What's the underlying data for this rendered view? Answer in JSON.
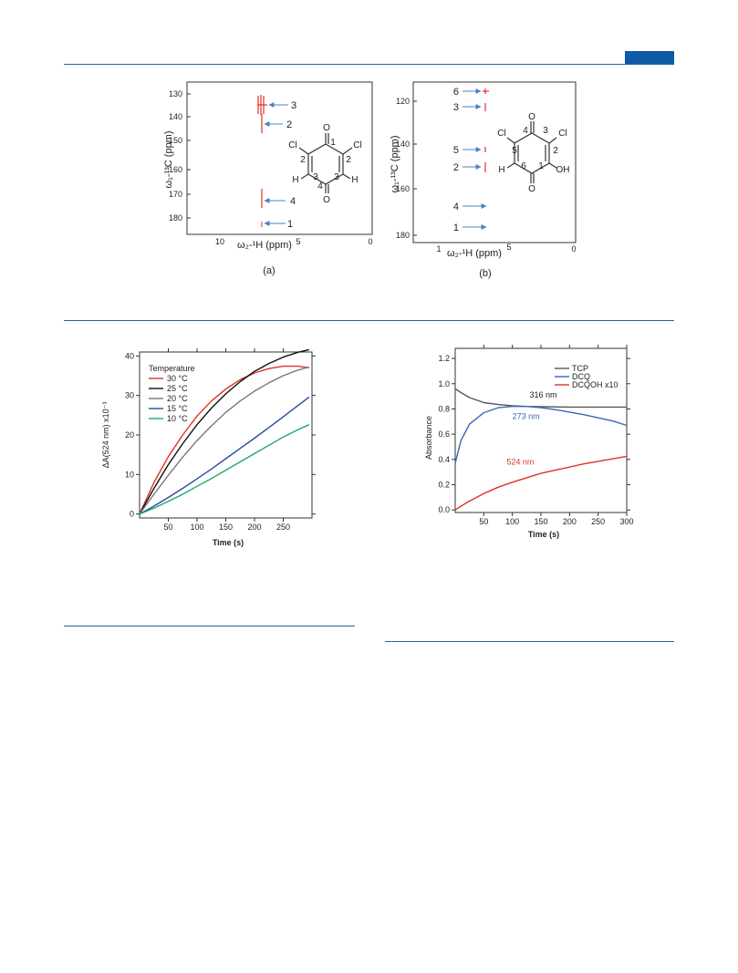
{
  "figure_top": {
    "nmr_a": {
      "y_label": "ω₁-¹³C (ppm)",
      "x_label": "ω₂-¹H (ppm)",
      "y_ticks": [
        "130",
        "140",
        "150",
        "160",
        "170",
        "180"
      ],
      "x_ticks": [
        "10",
        "5",
        "0"
      ],
      "annotations": [
        "3",
        "2",
        "4",
        "1"
      ],
      "structure_atoms": [
        "O",
        "1",
        "Cl",
        "2",
        "2",
        "Cl",
        "H",
        "3",
        "3",
        "H",
        "4",
        "O"
      ],
      "caption": "(a)"
    },
    "nmr_b": {
      "y_label": "ω₁-¹³C (ppm)",
      "x_label": "ω₂-¹H (ppm)",
      "y_ticks": [
        "120",
        "140",
        "160",
        "180"
      ],
      "x_ticks": [
        "1",
        "5",
        "0"
      ],
      "annotations": [
        "6",
        "3",
        "5",
        "2",
        "4",
        "1"
      ],
      "structure_atoms": [
        "O",
        "4",
        "3",
        "Cl",
        "Cl",
        "5",
        "2",
        "H",
        "6",
        "1",
        "OH",
        "O"
      ],
      "caption": "(b)"
    }
  },
  "chart_data": [
    {
      "type": "line",
      "xlabel": "Time (s)",
      "ylabel": "ΔA(524 nm) x10⁻³",
      "xlim": [
        0,
        300
      ],
      "ylim": [
        -1,
        41
      ],
      "x_ticks": [
        50,
        100,
        150,
        200,
        250
      ],
      "y_ticks": [
        0,
        10,
        20,
        30,
        40
      ],
      "legend_title": "Temperature",
      "legend_position": "top-left",
      "x": [
        0,
        25,
        50,
        75,
        100,
        125,
        150,
        175,
        200,
        225,
        250,
        275,
        295
      ],
      "series": [
        {
          "name": "30 °C",
          "color": "#e0302a",
          "values": [
            0,
            8,
            14.5,
            20,
            24.8,
            28.6,
            31.6,
            34,
            35.7,
            36.8,
            37.4,
            37.4,
            37.0
          ]
        },
        {
          "name": "25 °C",
          "color": "#111111",
          "values": [
            0,
            6.5,
            12.5,
            17.8,
            22.6,
            26.8,
            30.4,
            33.5,
            36.1,
            38.1,
            39.7,
            40.9,
            41.6
          ]
        },
        {
          "name": "20 °C",
          "color": "#777777",
          "values": [
            0,
            5,
            9.8,
            14.4,
            18.6,
            22.3,
            25.7,
            28.6,
            31.1,
            33.2,
            35,
            36.4,
            37.2
          ]
        },
        {
          "name": "15 °C",
          "color": "#2b4a9e",
          "values": [
            0,
            2,
            4.2,
            6.5,
            8.9,
            11.4,
            14,
            16.6,
            19.2,
            21.9,
            24.6,
            27.4,
            29.6
          ]
        },
        {
          "name": "10 °C",
          "color": "#1fa86b",
          "values": [
            0,
            1.5,
            3.2,
            5,
            7,
            9,
            11.1,
            13.2,
            15.3,
            17.4,
            19.5,
            21.3,
            22.6
          ]
        }
      ]
    },
    {
      "type": "line",
      "xlabel": "Time (s)",
      "ylabel": "Absorbance",
      "xlim": [
        0,
        300
      ],
      "ylim": [
        -0.02,
        1.28
      ],
      "x_ticks": [
        50,
        100,
        150,
        200,
        250,
        300
      ],
      "y_ticks": [
        "0.0",
        "0.2",
        "0.4",
        "0.6",
        "0.8",
        "1.0",
        "1.2"
      ],
      "legend_position": "top-right",
      "x": [
        0,
        10,
        25,
        50,
        75,
        100,
        125,
        150,
        175,
        200,
        225,
        250,
        275,
        300
      ],
      "series": [
        {
          "name": "TCP",
          "color": "#555555",
          "label": "316 nm",
          "values": [
            0.96,
            0.93,
            0.89,
            0.85,
            0.835,
            0.825,
            0.82,
            0.818,
            0.816,
            0.815,
            0.815,
            0.815,
            0.815,
            0.815
          ]
        },
        {
          "name": "DCQ",
          "color": "#3a66b5",
          "label": "273 nm",
          "values": [
            0.37,
            0.55,
            0.68,
            0.77,
            0.81,
            0.82,
            0.82,
            0.81,
            0.795,
            0.775,
            0.755,
            0.73,
            0.705,
            0.67
          ]
        },
        {
          "name": "DCQOH x10",
          "color": "#e0302a",
          "label": "524 nm",
          "values": [
            0,
            0.03,
            0.07,
            0.13,
            0.18,
            0.22,
            0.255,
            0.29,
            0.315,
            0.34,
            0.365,
            0.385,
            0.405,
            0.425
          ]
        }
      ]
    }
  ]
}
